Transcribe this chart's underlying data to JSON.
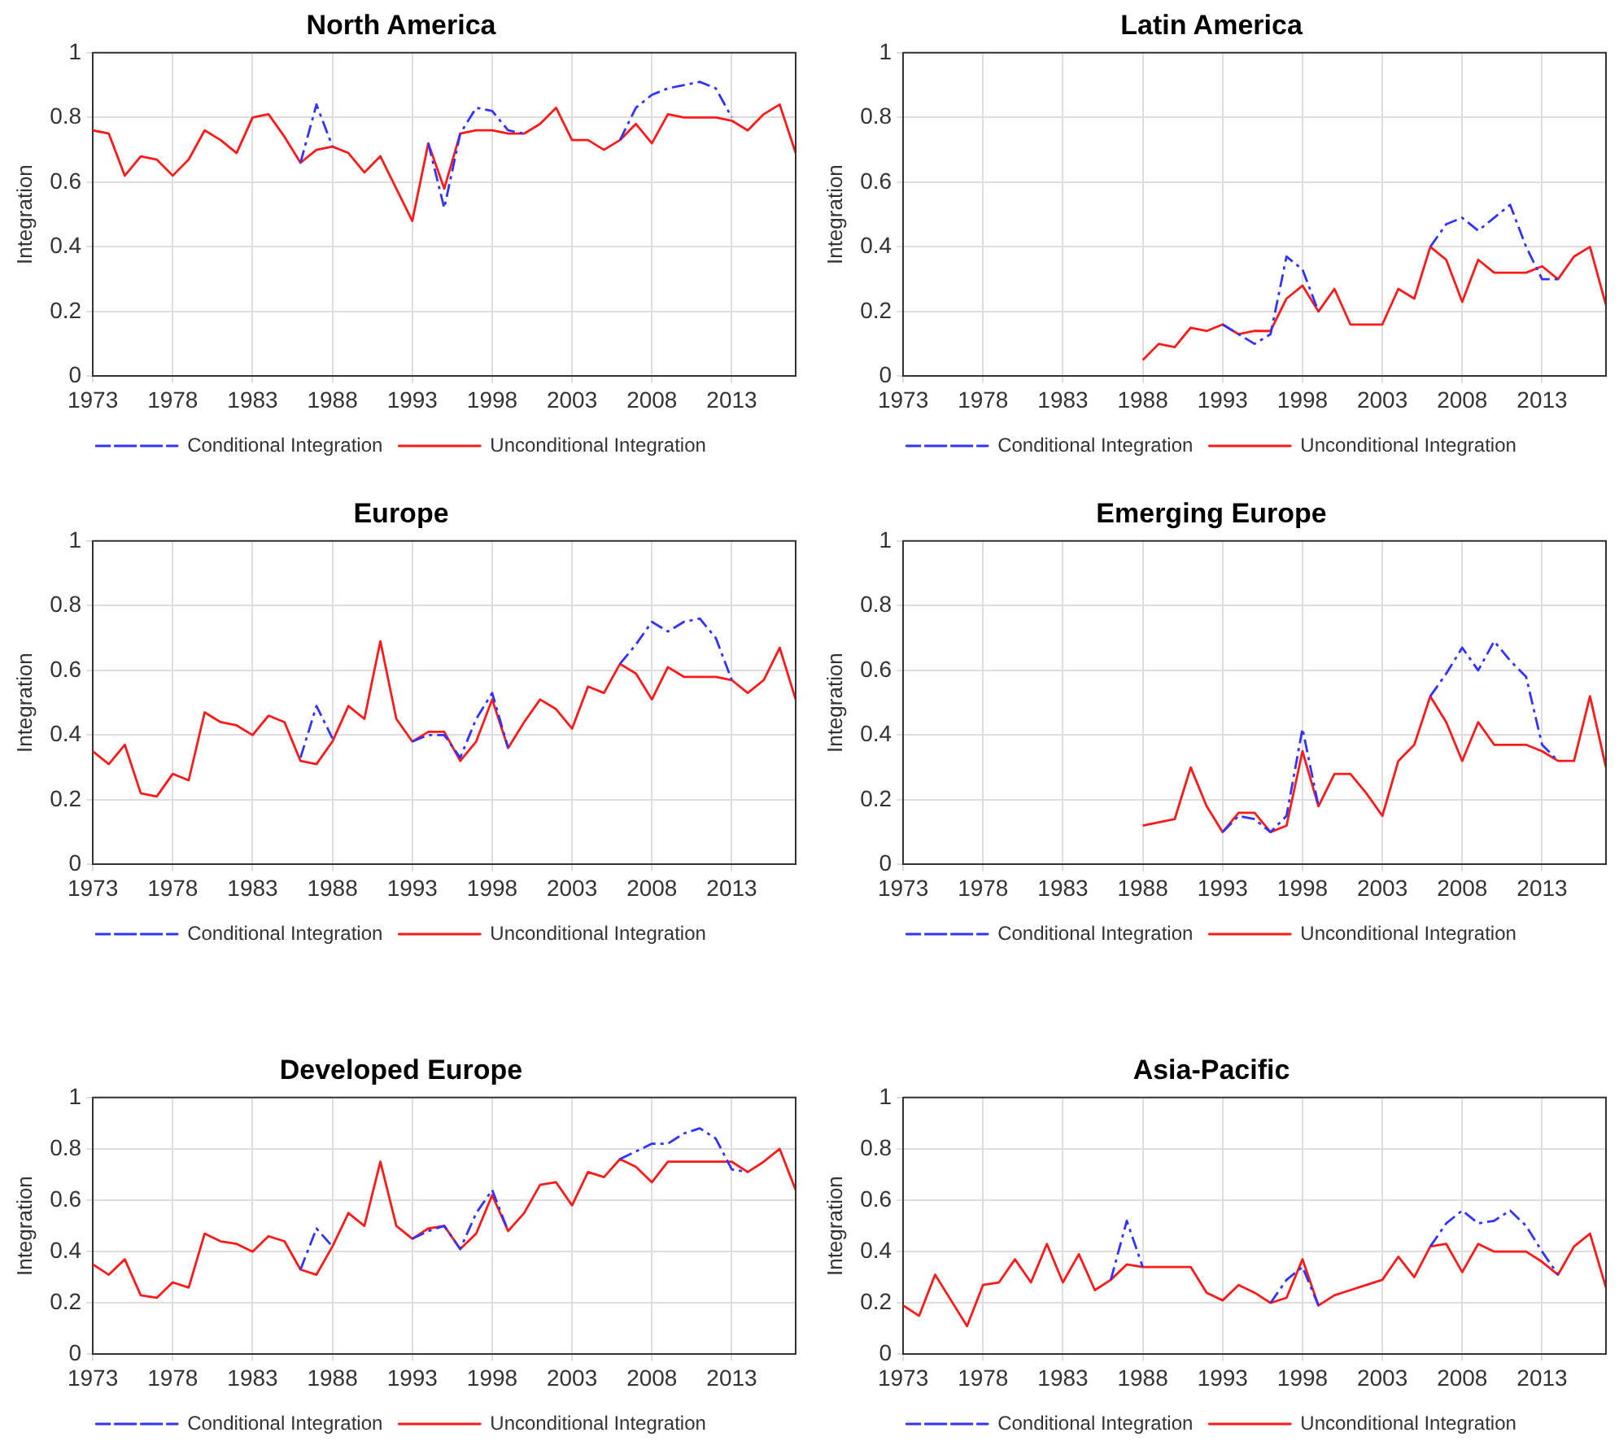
{
  "chart_data": [
    {
      "type": "line",
      "title": "North America",
      "ylabel": "Integration",
      "x": [
        1973,
        1974,
        1975,
        1976,
        1977,
        1978,
        1979,
        1980,
        1981,
        1982,
        1983,
        1984,
        1985,
        1986,
        1987,
        1988,
        1989,
        1990,
        1991,
        1992,
        1993,
        1994,
        1995,
        1996,
        1997,
        1998,
        1999,
        2000,
        2001,
        2002,
        2003,
        2004,
        2005,
        2006,
        2007,
        2008,
        2009,
        2010,
        2011,
        2012,
        2013,
        2014,
        2015,
        2016,
        2017
      ],
      "xlim": [
        1973,
        2017
      ],
      "xticks": [
        1973,
        1978,
        1983,
        1988,
        1993,
        1998,
        2003,
        2008,
        2013
      ],
      "ylim": [
        0,
        1
      ],
      "yticks": [
        0,
        0.2,
        0.4,
        0.6,
        0.8,
        1
      ],
      "grid": true,
      "legend": "bottom",
      "series": [
        {
          "name": "Conditional Integration",
          "color": "#3333ff",
          "line_style": "dashed",
          "values": [
            null,
            null,
            null,
            null,
            null,
            null,
            null,
            null,
            null,
            null,
            null,
            null,
            null,
            0.66,
            0.84,
            0.71,
            null,
            null,
            null,
            null,
            null,
            0.72,
            0.52,
            0.75,
            0.83,
            0.82,
            0.76,
            0.75,
            null,
            null,
            null,
            null,
            null,
            0.73,
            0.83,
            0.87,
            0.89,
            0.9,
            0.91,
            0.89,
            0.8,
            null,
            null,
            null,
            null
          ]
        },
        {
          "name": "Unconditional Integration",
          "color": "#ff1a1a",
          "line_style": "solid",
          "values": [
            0.76,
            0.75,
            0.62,
            0.68,
            0.67,
            0.62,
            0.67,
            0.76,
            0.73,
            0.69,
            0.8,
            0.81,
            0.74,
            0.66,
            0.7,
            0.71,
            0.69,
            0.63,
            0.68,
            0.58,
            0.48,
            0.72,
            0.58,
            0.75,
            0.76,
            0.76,
            0.75,
            0.75,
            0.78,
            0.83,
            0.73,
            0.73,
            0.7,
            0.73,
            0.78,
            0.72,
            0.81,
            0.8,
            0.8,
            0.8,
            0.79,
            0.76,
            0.81,
            0.84,
            0.69
          ]
        }
      ]
    },
    {
      "type": "line",
      "title": "Latin America",
      "ylabel": "Integration",
      "x": [
        1988,
        1989,
        1990,
        1991,
        1992,
        1993,
        1994,
        1995,
        1996,
        1997,
        1998,
        1999,
        2000,
        2001,
        2002,
        2003,
        2004,
        2005,
        2006,
        2007,
        2008,
        2009,
        2010,
        2011,
        2012,
        2013,
        2014,
        2015,
        2016,
        2017
      ],
      "xlim": [
        1973,
        2017
      ],
      "xticks": [
        1973,
        1978,
        1983,
        1988,
        1993,
        1998,
        2003,
        2008,
        2013
      ],
      "ylim": [
        0,
        1
      ],
      "yticks": [
        0,
        0.2,
        0.4,
        0.6,
        0.8,
        1
      ],
      "grid": true,
      "legend": "bottom",
      "series": [
        {
          "name": "Conditional Integration",
          "color": "#3333ff",
          "line_style": "dashed",
          "values": [
            null,
            null,
            null,
            null,
            null,
            0.16,
            0.13,
            0.1,
            0.13,
            0.37,
            0.33,
            0.2,
            null,
            null,
            null,
            null,
            null,
            null,
            0.4,
            0.47,
            0.49,
            0.45,
            0.49,
            0.53,
            0.4,
            0.3,
            0.3,
            null,
            null,
            null
          ]
        },
        {
          "name": "Unconditional Integration",
          "color": "#ff1a1a",
          "line_style": "solid",
          "values": [
            0.05,
            0.1,
            0.09,
            0.15,
            0.14,
            0.16,
            0.13,
            0.14,
            0.14,
            0.24,
            0.28,
            0.2,
            0.27,
            0.16,
            0.16,
            0.16,
            0.27,
            0.24,
            0.4,
            0.36,
            0.23,
            0.36,
            0.32,
            0.32,
            0.32,
            0.34,
            0.3,
            0.37,
            0.4,
            0.22
          ]
        }
      ]
    },
    {
      "type": "line",
      "title": "Europe",
      "ylabel": "Integration",
      "x": [
        1973,
        1974,
        1975,
        1976,
        1977,
        1978,
        1979,
        1980,
        1981,
        1982,
        1983,
        1984,
        1985,
        1986,
        1987,
        1988,
        1989,
        1990,
        1991,
        1992,
        1993,
        1994,
        1995,
        1996,
        1997,
        1998,
        1999,
        2000,
        2001,
        2002,
        2003,
        2004,
        2005,
        2006,
        2007,
        2008,
        2009,
        2010,
        2011,
        2012,
        2013,
        2014,
        2015,
        2016,
        2017
      ],
      "xlim": [
        1973,
        2017
      ],
      "xticks": [
        1973,
        1978,
        1983,
        1988,
        1993,
        1998,
        2003,
        2008,
        2013
      ],
      "ylim": [
        0,
        1
      ],
      "yticks": [
        0,
        0.2,
        0.4,
        0.6,
        0.8,
        1
      ],
      "grid": true,
      "legend": "bottom",
      "series": [
        {
          "name": "Conditional Integration",
          "color": "#3333ff",
          "line_style": "dashed",
          "values": [
            null,
            null,
            null,
            null,
            null,
            null,
            null,
            null,
            null,
            null,
            null,
            null,
            null,
            0.33,
            0.49,
            0.39,
            null,
            null,
            null,
            null,
            0.38,
            0.4,
            0.4,
            0.33,
            0.45,
            0.53,
            0.36,
            null,
            null,
            null,
            null,
            null,
            null,
            0.62,
            0.68,
            0.75,
            0.72,
            0.75,
            0.76,
            0.7,
            0.57,
            null,
            null,
            null,
            null
          ]
        },
        {
          "name": "Unconditional Integration",
          "color": "#ff1a1a",
          "line_style": "solid",
          "values": [
            0.35,
            0.31,
            0.37,
            0.22,
            0.21,
            0.28,
            0.26,
            0.47,
            0.44,
            0.43,
            0.4,
            0.46,
            0.44,
            0.32,
            0.31,
            0.38,
            0.49,
            0.45,
            0.69,
            0.45,
            0.38,
            0.41,
            0.41,
            0.32,
            0.38,
            0.51,
            0.36,
            0.44,
            0.51,
            0.48,
            0.42,
            0.55,
            0.53,
            0.62,
            0.59,
            0.51,
            0.61,
            0.58,
            0.58,
            0.58,
            0.57,
            0.53,
            0.57,
            0.67,
            0.51
          ]
        }
      ]
    },
    {
      "type": "line",
      "title": "Emerging Europe",
      "ylabel": "Integration",
      "x": [
        1988,
        1989,
        1990,
        1991,
        1992,
        1993,
        1994,
        1995,
        1996,
        1997,
        1998,
        1999,
        2000,
        2001,
        2002,
        2003,
        2004,
        2005,
        2006,
        2007,
        2008,
        2009,
        2010,
        2011,
        2012,
        2013,
        2014,
        2015,
        2016,
        2017
      ],
      "xlim": [
        1973,
        2017
      ],
      "xticks": [
        1973,
        1978,
        1983,
        1988,
        1993,
        1998,
        2003,
        2008,
        2013
      ],
      "ylim": [
        0,
        1
      ],
      "yticks": [
        0,
        0.2,
        0.4,
        0.6,
        0.8,
        1
      ],
      "grid": true,
      "legend": "bottom",
      "series": [
        {
          "name": "Conditional Integration",
          "color": "#3333ff",
          "line_style": "dashed",
          "values": [
            null,
            null,
            null,
            null,
            null,
            0.1,
            0.15,
            0.14,
            0.1,
            0.15,
            0.42,
            0.18,
            null,
            null,
            null,
            null,
            null,
            null,
            0.52,
            0.59,
            0.67,
            0.6,
            0.69,
            0.63,
            0.58,
            0.37,
            0.32,
            null,
            null,
            null
          ]
        },
        {
          "name": "Unconditional Integration",
          "color": "#ff1a1a",
          "line_style": "solid",
          "values": [
            0.12,
            0.13,
            0.14,
            0.3,
            0.18,
            0.1,
            0.16,
            0.16,
            0.1,
            0.12,
            0.35,
            0.18,
            0.28,
            0.28,
            0.22,
            0.15,
            0.32,
            0.37,
            0.52,
            0.44,
            0.32,
            0.44,
            0.37,
            0.37,
            0.37,
            0.35,
            0.32,
            0.32,
            0.52,
            0.3
          ]
        }
      ]
    },
    {
      "type": "line",
      "title": "Developed Europe",
      "ylabel": "Integration",
      "x": [
        1973,
        1974,
        1975,
        1976,
        1977,
        1978,
        1979,
        1980,
        1981,
        1982,
        1983,
        1984,
        1985,
        1986,
        1987,
        1988,
        1989,
        1990,
        1991,
        1992,
        1993,
        1994,
        1995,
        1996,
        1997,
        1998,
        1999,
        2000,
        2001,
        2002,
        2003,
        2004,
        2005,
        2006,
        2007,
        2008,
        2009,
        2010,
        2011,
        2012,
        2013,
        2014,
        2015,
        2016,
        2017
      ],
      "xlim": [
        1973,
        2017
      ],
      "xticks": [
        1973,
        1978,
        1983,
        1988,
        1993,
        1998,
        2003,
        2008,
        2013
      ],
      "ylim": [
        0,
        1
      ],
      "yticks": [
        0,
        0.2,
        0.4,
        0.6,
        0.8,
        1
      ],
      "grid": true,
      "legend": "bottom",
      "series": [
        {
          "name": "Conditional Integration",
          "color": "#3333ff",
          "line_style": "dashed",
          "values": [
            null,
            null,
            null,
            null,
            null,
            null,
            null,
            null,
            null,
            null,
            null,
            null,
            null,
            0.33,
            0.49,
            0.42,
            null,
            null,
            null,
            null,
            0.45,
            0.48,
            0.5,
            0.41,
            0.55,
            0.64,
            0.48,
            null,
            null,
            null,
            null,
            null,
            null,
            0.76,
            0.79,
            0.82,
            0.82,
            0.86,
            0.88,
            0.84,
            0.72,
            0.71,
            null,
            null,
            null
          ]
        },
        {
          "name": "Unconditional Integration",
          "color": "#ff1a1a",
          "line_style": "solid",
          "values": [
            0.35,
            0.31,
            0.37,
            0.23,
            0.22,
            0.28,
            0.26,
            0.47,
            0.44,
            0.43,
            0.4,
            0.46,
            0.44,
            0.33,
            0.31,
            0.42,
            0.55,
            0.5,
            0.75,
            0.5,
            0.45,
            0.49,
            0.5,
            0.41,
            0.47,
            0.62,
            0.48,
            0.55,
            0.66,
            0.67,
            0.58,
            0.71,
            0.69,
            0.76,
            0.73,
            0.67,
            0.75,
            0.75,
            0.75,
            0.75,
            0.75,
            0.71,
            0.75,
            0.8,
            0.64
          ]
        }
      ]
    },
    {
      "type": "line",
      "title": "Asia-Pacific",
      "ylabel": "Integration",
      "x": [
        1973,
        1974,
        1975,
        1976,
        1977,
        1978,
        1979,
        1980,
        1981,
        1982,
        1983,
        1984,
        1985,
        1986,
        1987,
        1988,
        1989,
        1990,
        1991,
        1992,
        1993,
        1994,
        1995,
        1996,
        1997,
        1998,
        1999,
        2000,
        2001,
        2002,
        2003,
        2004,
        2005,
        2006,
        2007,
        2008,
        2009,
        2010,
        2011,
        2012,
        2013,
        2014,
        2015,
        2016,
        2017
      ],
      "xlim": [
        1973,
        2017
      ],
      "xticks": [
        1973,
        1978,
        1983,
        1988,
        1993,
        1998,
        2003,
        2008,
        2013
      ],
      "ylim": [
        0,
        1
      ],
      "yticks": [
        0,
        0.2,
        0.4,
        0.6,
        0.8,
        1
      ],
      "grid": true,
      "legend": "bottom",
      "series": [
        {
          "name": "Conditional Integration",
          "color": "#3333ff",
          "line_style": "dashed",
          "values": [
            null,
            null,
            null,
            null,
            null,
            null,
            null,
            null,
            null,
            null,
            null,
            null,
            null,
            0.29,
            0.52,
            0.34,
            null,
            null,
            null,
            null,
            null,
            null,
            null,
            0.2,
            0.29,
            0.34,
            0.19,
            null,
            null,
            null,
            null,
            null,
            null,
            0.42,
            0.51,
            0.56,
            0.51,
            0.52,
            0.56,
            0.5,
            0.4,
            0.31,
            null,
            null,
            null
          ]
        },
        {
          "name": "Unconditional Integration",
          "color": "#ff1a1a",
          "line_style": "solid",
          "values": [
            0.19,
            0.15,
            0.31,
            0.21,
            0.11,
            0.27,
            0.28,
            0.37,
            0.28,
            0.43,
            0.28,
            0.39,
            0.25,
            0.29,
            0.35,
            0.34,
            0.34,
            0.34,
            0.34,
            0.24,
            0.21,
            0.27,
            0.24,
            0.2,
            0.22,
            0.37,
            0.19,
            0.23,
            0.25,
            0.27,
            0.29,
            0.38,
            0.3,
            0.42,
            0.43,
            0.32,
            0.43,
            0.4,
            0.4,
            0.4,
            0.36,
            0.31,
            0.42,
            0.47,
            0.26
          ]
        }
      ]
    }
  ]
}
